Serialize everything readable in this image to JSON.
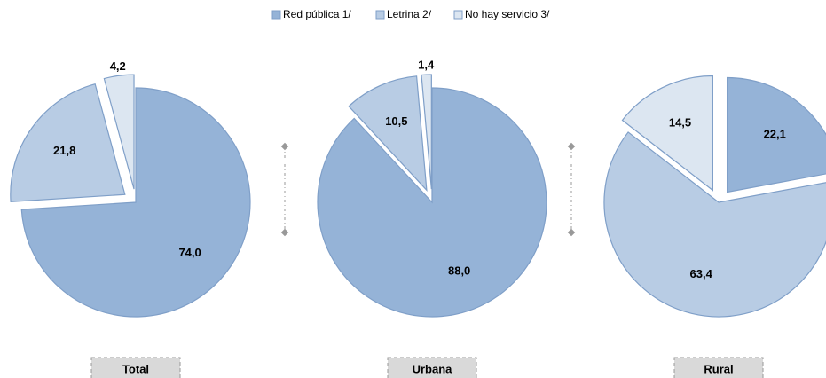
{
  "chart_data": {
    "type": "pie",
    "categories": [
      "Red pública 1/",
      "Letrina 2/",
      "No hay servicio 3/"
    ],
    "colors": [
      "#95b3d7",
      "#b8cce4",
      "#dce6f1"
    ],
    "series": [
      {
        "name": "Total",
        "values": [
          74.0,
          21.8,
          4.2
        ],
        "value_labels": [
          "74,0",
          "21,8",
          "4,2"
        ],
        "explode": [
          false,
          true,
          true
        ]
      },
      {
        "name": "Urbana",
        "values": [
          88.0,
          10.5,
          1.4
        ],
        "value_labels": [
          "88,0",
          "10,5",
          "1,4"
        ],
        "explode": [
          false,
          true,
          true
        ]
      },
      {
        "name": "Rural",
        "values": [
          22.1,
          63.4,
          14.5
        ],
        "value_labels": [
          "22,1",
          "63,4",
          "14,5"
        ],
        "explode": [
          true,
          false,
          true
        ]
      }
    ]
  }
}
